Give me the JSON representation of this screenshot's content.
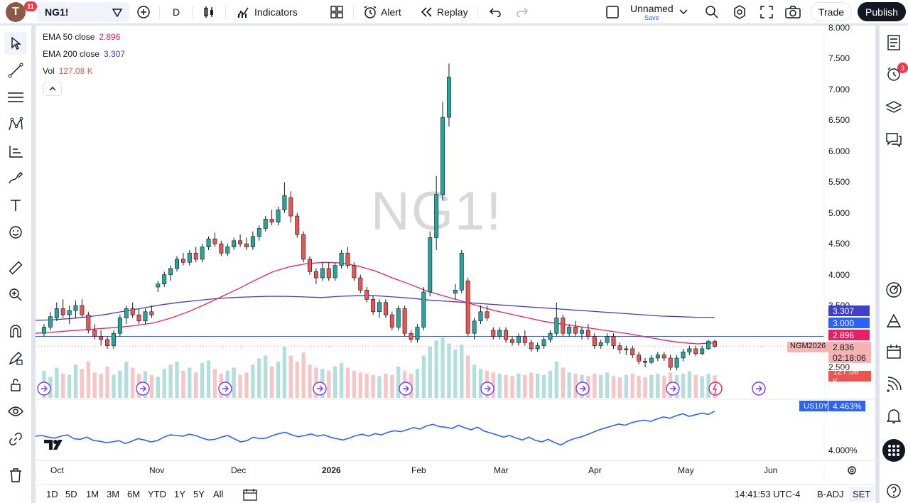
{
  "topbar": {
    "avatar_letter": "T",
    "avatar_badge": "11",
    "symbol": "NG1!",
    "interval": "D",
    "indicators_label": "Indicators",
    "alert_label": "Alert",
    "replay_label": "Replay",
    "layout_name": "Unnamed",
    "layout_save": "Save",
    "trade_label": "Trade",
    "publish_label": "Publish"
  },
  "legend": {
    "ema50_label": "EMA 50 close",
    "ema50_value": "2.896",
    "ema200_label": "EMA 200 close",
    "ema200_value": "3.307",
    "vol_label": "Vol",
    "vol_value": "127.08 K"
  },
  "watermark": "NG1!",
  "price_axis": {
    "ticks": [
      "8.000",
      "7.500",
      "7.000",
      "6.500",
      "6.000",
      "5.500",
      "5.000",
      "4.500",
      "4.000",
      "3.500",
      "2.500"
    ],
    "tags": {
      "ema200": "3.307",
      "level": "3.000",
      "ema50": "2.896",
      "last": "2.836",
      "countdown": "02:18:06",
      "volume": "127.08 K"
    },
    "ticker": "NGM2026"
  },
  "lower_pane": {
    "symbol": "US10Y",
    "value": "4.463%",
    "axis_tick": "4.000%"
  },
  "time_axis": [
    "Oct",
    "Nov",
    "Dec",
    "2026",
    "Feb",
    "Mar",
    "Apr",
    "May",
    "Jun"
  ],
  "bottombar": {
    "ranges": [
      "1D",
      "5D",
      "1M",
      "3M",
      "6M",
      "YTD",
      "1Y",
      "5Y",
      "All"
    ],
    "clock": "14:41:53 UTC-4",
    "badj": "B-ADJ",
    "set": "SET"
  },
  "right_toolbar": {
    "alerts_badge": "3"
  },
  "colors": {
    "up": "#26a69a",
    "down": "#ef5350",
    "ema50": "#e91e63",
    "ema200": "#3f3fcf",
    "us10y": "#2962ff"
  },
  "chart_data": {
    "type": "candlestick",
    "ylim": [
      2.3,
      8.1
    ],
    "candles": [
      [
        3.05,
        3.2,
        3.0,
        3.15
      ],
      [
        3.15,
        3.4,
        3.1,
        3.32
      ],
      [
        3.3,
        3.55,
        3.25,
        3.45
      ],
      [
        3.45,
        3.6,
        3.3,
        3.35
      ],
      [
        3.35,
        3.5,
        3.2,
        3.42
      ],
      [
        3.42,
        3.58,
        3.3,
        3.5
      ],
      [
        3.5,
        3.6,
        3.3,
        3.35
      ],
      [
        3.35,
        3.4,
        3.05,
        3.1
      ],
      [
        3.1,
        3.2,
        2.95,
        3.0
      ],
      [
        3.0,
        3.1,
        2.85,
        2.95
      ],
      [
        2.95,
        3.0,
        2.8,
        2.85
      ],
      [
        2.85,
        3.1,
        2.8,
        3.05
      ],
      [
        3.05,
        3.35,
        3.0,
        3.3
      ],
      [
        3.3,
        3.5,
        3.2,
        3.45
      ],
      [
        3.45,
        3.55,
        3.3,
        3.35
      ],
      [
        3.35,
        3.45,
        3.2,
        3.25
      ],
      [
        3.25,
        3.45,
        3.2,
        3.4
      ],
      [
        3.4,
        3.5,
        3.3,
        3.35
      ],
      [
        3.8,
        3.9,
        3.72,
        3.85
      ],
      [
        3.85,
        4.05,
        3.8,
        4.0
      ],
      [
        4.0,
        4.15,
        3.9,
        4.1
      ],
      [
        4.1,
        4.3,
        4.05,
        4.25
      ],
      [
        4.25,
        4.35,
        4.15,
        4.2
      ],
      [
        4.2,
        4.4,
        4.15,
        4.35
      ],
      [
        4.35,
        4.45,
        4.2,
        4.25
      ],
      [
        4.25,
        4.5,
        4.2,
        4.45
      ],
      [
        4.45,
        4.62,
        4.4,
        4.58
      ],
      [
        4.58,
        4.68,
        4.45,
        4.5
      ],
      [
        4.5,
        4.55,
        4.3,
        4.35
      ],
      [
        4.35,
        4.5,
        4.3,
        4.45
      ],
      [
        4.45,
        4.6,
        4.4,
        4.55
      ],
      [
        4.55,
        4.65,
        4.45,
        4.5
      ],
      [
        4.5,
        4.6,
        4.4,
        4.45
      ],
      [
        4.45,
        4.7,
        4.4,
        4.62
      ],
      [
        4.62,
        4.8,
        4.55,
        4.75
      ],
      [
        4.75,
        4.95,
        4.7,
        4.9
      ],
      [
        4.9,
        5.05,
        4.8,
        4.85
      ],
      [
        4.85,
        5.1,
        4.8,
        5.05
      ],
      [
        5.05,
        5.5,
        5.0,
        5.28
      ],
      [
        5.25,
        5.35,
        4.85,
        4.95
      ],
      [
        4.95,
        5.0,
        4.6,
        4.65
      ],
      [
        4.65,
        4.7,
        4.2,
        4.25
      ],
      [
        4.25,
        4.3,
        4.0,
        4.05
      ],
      [
        4.05,
        4.1,
        3.85,
        3.95
      ],
      [
        3.95,
        4.2,
        3.9,
        4.1
      ],
      [
        4.1,
        4.2,
        3.9,
        3.95
      ],
      [
        3.95,
        4.2,
        3.9,
        4.15
      ],
      [
        4.15,
        4.4,
        4.1,
        4.35
      ],
      [
        4.35,
        4.45,
        4.1,
        4.15
      ],
      [
        4.15,
        4.2,
        3.9,
        3.95
      ],
      [
        3.95,
        4.0,
        3.7,
        3.75
      ],
      [
        3.75,
        3.8,
        3.55,
        3.6
      ],
      [
        3.6,
        3.65,
        3.35,
        3.4
      ],
      [
        3.4,
        3.6,
        3.3,
        3.55
      ],
      [
        3.55,
        3.6,
        3.3,
        3.35
      ],
      [
        3.35,
        3.4,
        3.1,
        3.15
      ],
      [
        3.15,
        3.5,
        3.1,
        3.45
      ],
      [
        3.45,
        3.5,
        3.0,
        3.05
      ],
      [
        3.05,
        3.1,
        2.9,
        2.95
      ],
      [
        2.95,
        3.2,
        2.9,
        3.15
      ],
      [
        3.15,
        3.8,
        3.1,
        3.72
      ],
      [
        3.72,
        4.7,
        3.65,
        4.6
      ],
      [
        4.6,
        5.6,
        4.4,
        5.3
      ],
      [
        5.3,
        6.8,
        5.2,
        6.55
      ],
      [
        6.55,
        7.42,
        6.4,
        7.2
      ],
      [
        3.7,
        3.85,
        3.6,
        3.75
      ],
      [
        3.75,
        4.4,
        3.7,
        4.35
      ],
      [
        3.9,
        3.95,
        3.0,
        3.05
      ],
      [
        3.05,
        3.3,
        2.95,
        3.25
      ],
      [
        3.25,
        3.5,
        3.2,
        3.4
      ],
      [
        3.4,
        3.5,
        3.25,
        3.3
      ],
      [
        3.1,
        3.15,
        2.95,
        3.0
      ],
      [
        3.0,
        3.15,
        2.95,
        3.1
      ],
      [
        3.1,
        3.15,
        2.9,
        2.95
      ],
      [
        2.95,
        3.0,
        2.85,
        2.9
      ],
      [
        2.9,
        3.05,
        2.85,
        3.0
      ],
      [
        3.0,
        3.1,
        2.85,
        2.9
      ],
      [
        2.9,
        2.95,
        2.75,
        2.8
      ],
      [
        2.8,
        2.9,
        2.75,
        2.85
      ],
      [
        2.85,
        3.0,
        2.8,
        2.95
      ],
      [
        2.95,
        3.1,
        2.9,
        3.05
      ],
      [
        3.05,
        3.55,
        3.0,
        3.3
      ],
      [
        3.3,
        3.35,
        3.0,
        3.05
      ],
      [
        3.05,
        3.2,
        3.0,
        3.15
      ],
      [
        3.15,
        3.25,
        3.0,
        3.05
      ],
      [
        3.05,
        3.15,
        2.95,
        3.1
      ],
      [
        3.1,
        3.2,
        2.95,
        3.0
      ],
      [
        3.0,
        3.05,
        2.8,
        2.85
      ],
      [
        2.85,
        2.95,
        2.8,
        2.9
      ],
      [
        2.9,
        3.05,
        2.85,
        3.0
      ],
      [
        3.0,
        3.05,
        2.8,
        2.85
      ],
      [
        2.85,
        2.9,
        2.72,
        2.78
      ],
      [
        2.78,
        2.85,
        2.7,
        2.8
      ],
      [
        2.8,
        2.85,
        2.65,
        2.7
      ],
      [
        2.7,
        2.75,
        2.55,
        2.6
      ],
      [
        2.6,
        2.65,
        2.5,
        2.58
      ],
      [
        2.58,
        2.7,
        2.55,
        2.65
      ],
      [
        2.65,
        2.75,
        2.6,
        2.7
      ],
      [
        2.7,
        2.75,
        2.6,
        2.65
      ],
      [
        2.65,
        2.7,
        2.45,
        2.5
      ],
      [
        2.5,
        2.7,
        2.45,
        2.65
      ],
      [
        2.65,
        2.8,
        2.6,
        2.75
      ],
      [
        2.75,
        2.85,
        2.7,
        2.8
      ],
      [
        2.8,
        2.85,
        2.68,
        2.72
      ],
      [
        2.72,
        2.85,
        2.7,
        2.8
      ],
      [
        2.8,
        2.95,
        2.78,
        2.92
      ],
      [
        2.92,
        2.95,
        2.82,
        2.84
      ]
    ],
    "volume": [
      45,
      35,
      50,
      40,
      38,
      55,
      48,
      60,
      42,
      40,
      52,
      38,
      45,
      60,
      50,
      40,
      44,
      38,
      35,
      48,
      55,
      60,
      45,
      50,
      42,
      58,
      62,
      48,
      40,
      45,
      50,
      38,
      42,
      55,
      65,
      70,
      52,
      60,
      85,
      70,
      60,
      75,
      55,
      50,
      48,
      45,
      52,
      58,
      50,
      45,
      42,
      40,
      38,
      36,
      40,
      38,
      52,
      45,
      40,
      48,
      70,
      85,
      95,
      100,
      90,
      80,
      88,
      70,
      55,
      48,
      45,
      42,
      40,
      38,
      36,
      40,
      38,
      42,
      40,
      38,
      45,
      60,
      50,
      42,
      40,
      38,
      36,
      40,
      38,
      42,
      36,
      34,
      38,
      40,
      36,
      34,
      38,
      40,
      36,
      42,
      38,
      40,
      44,
      38,
      36,
      40,
      37
    ],
    "ema50": [
      3.05,
      3.07,
      3.09,
      3.11,
      3.13,
      3.15,
      3.18,
      3.22,
      3.3,
      3.4,
      3.52,
      3.65,
      3.78,
      3.92,
      4.05,
      4.13,
      4.18,
      4.2,
      4.19,
      4.14,
      4.06,
      3.95,
      3.85,
      3.74,
      3.66,
      3.58,
      3.5,
      3.42,
      3.36,
      3.3,
      3.24,
      3.2,
      3.16,
      3.12,
      3.08,
      3.04,
      2.99,
      2.94,
      2.9,
      2.88,
      2.896
    ],
    "ema200": [
      3.26,
      3.27,
      3.29,
      3.32,
      3.36,
      3.41,
      3.46,
      3.51,
      3.55,
      3.58,
      3.61,
      3.63,
      3.64,
      3.65,
      3.65,
      3.64,
      3.63,
      3.65,
      3.66,
      3.66,
      3.64,
      3.62,
      3.59,
      3.57,
      3.55,
      3.53,
      3.51,
      3.49,
      3.47,
      3.45,
      3.43,
      3.41,
      3.39,
      3.37,
      3.35,
      3.33,
      3.32,
      3.31,
      3.307
    ],
    "us10y": [
      0.58,
      0.6,
      0.55,
      0.52,
      0.58,
      0.62,
      0.5,
      0.48,
      0.55,
      0.45,
      0.42,
      0.38,
      0.4,
      0.44,
      0.35,
      0.42,
      0.5,
      0.46,
      0.4,
      0.44,
      0.55,
      0.62,
      0.6,
      0.58,
      0.64,
      0.6,
      0.52,
      0.46,
      0.48,
      0.55,
      0.6,
      0.5,
      0.4,
      0.44,
      0.55,
      0.5,
      0.52,
      0.6,
      0.66,
      0.7,
      0.62,
      0.56,
      0.6,
      0.65,
      0.58,
      0.62,
      0.55,
      0.5,
      0.46,
      0.52,
      0.6,
      0.64,
      0.58,
      0.66,
      0.62,
      0.7,
      0.75,
      0.72,
      0.78,
      0.85,
      0.8,
      0.9,
      0.95,
      0.88,
      0.86,
      0.82,
      0.92,
      0.84,
      0.78,
      0.86,
      0.74,
      0.68,
      0.62,
      0.55,
      0.6,
      0.52,
      0.46,
      0.55,
      0.45,
      0.4,
      0.48,
      0.38,
      0.3,
      0.42,
      0.5,
      0.55,
      0.62,
      0.7,
      0.78,
      0.84,
      0.9,
      0.96,
      0.92,
      1.0,
      1.05,
      1.08,
      1.04,
      1.12,
      1.18,
      1.14,
      1.22,
      1.28,
      1.2,
      1.25,
      1.3,
      1.26,
      1.36
    ]
  }
}
